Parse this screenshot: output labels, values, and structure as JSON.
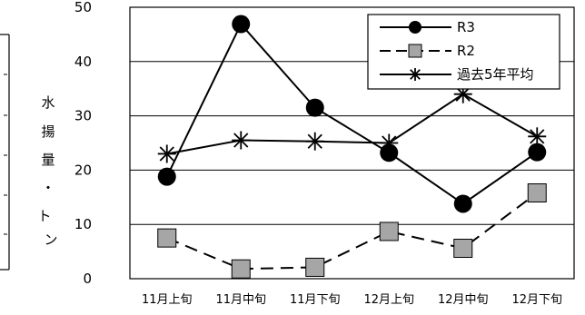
{
  "chart_data": {
    "type": "line",
    "categories": [
      "11月上旬",
      "11月中旬",
      "11月下旬",
      "12月上旬",
      "12月中旬",
      "12月下旬"
    ],
    "ylim": [
      0,
      50
    ],
    "yticks": [
      0,
      10,
      20,
      30,
      40,
      50
    ],
    "ylabel": "水揚量・トン",
    "ylabel_chars": [
      "水",
      "揚",
      "量",
      "・",
      "ト",
      "ン"
    ],
    "grid": "horizontal",
    "legend_position": "top-right",
    "series": [
      {
        "name": "R3",
        "marker": "circle",
        "line": "solid",
        "color": "#000000",
        "values": [
          18.8,
          46.9,
          31.5,
          23.2,
          13.8,
          23.3
        ]
      },
      {
        "name": "R2",
        "marker": "square",
        "line": "dashed",
        "color": "#000000",
        "marker_fill": "#a6a6a6",
        "values": [
          7.5,
          1.8,
          2.1,
          8.7,
          5.6,
          15.8
        ]
      },
      {
        "name": "過去5年平均",
        "marker": "asterisk",
        "line": "solid",
        "color": "#000000",
        "values": [
          23.0,
          25.5,
          25.3,
          25.0,
          34.0,
          26.2
        ]
      }
    ]
  }
}
